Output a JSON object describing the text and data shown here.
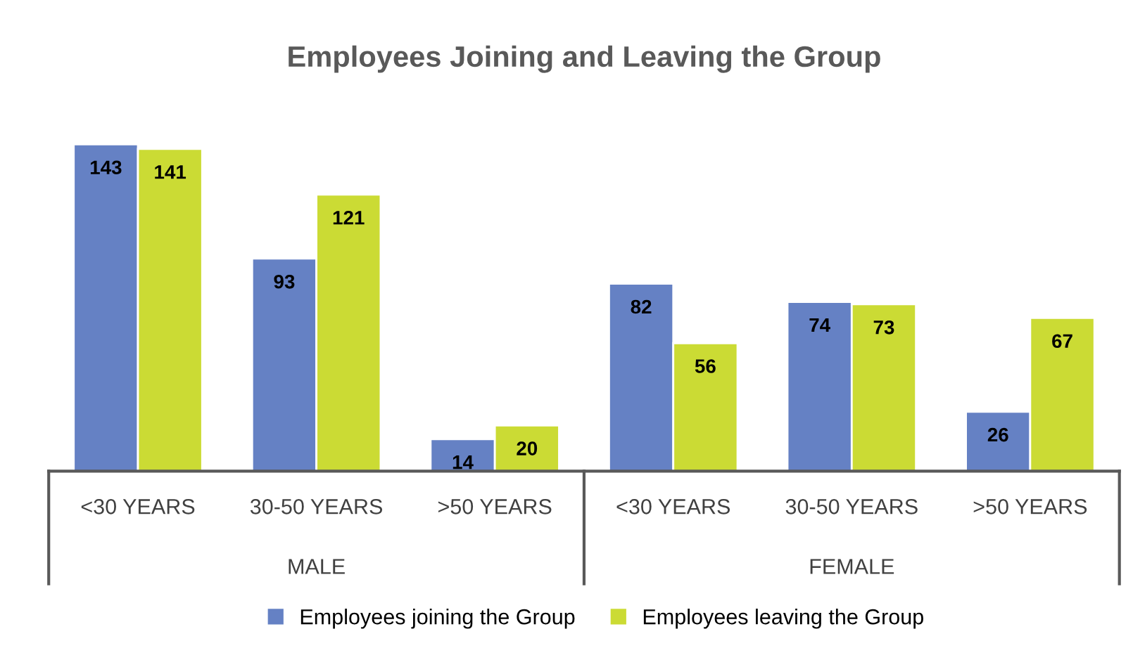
{
  "chart_data": {
    "type": "bar",
    "title": "Employees Joining and Leaving the Group",
    "categories": [
      "<30 YEARS",
      "30-50 YEARS",
      ">50 YEARS",
      "<30 YEARS",
      "30-50 YEARS",
      ">50 YEARS"
    ],
    "annotations": [
      "MALE",
      "FEMALE"
    ],
    "series": [
      {
        "name": "Employees joining the Group",
        "color": "#6581c4",
        "values": [
          143,
          93,
          14,
          82,
          74,
          26
        ]
      },
      {
        "name": "Employees leaving the Group",
        "color": "#cbdb34",
        "values": [
          141,
          121,
          20,
          56,
          73,
          67
        ]
      }
    ],
    "data_labels": true,
    "legend": "bottom",
    "grid": false
  }
}
